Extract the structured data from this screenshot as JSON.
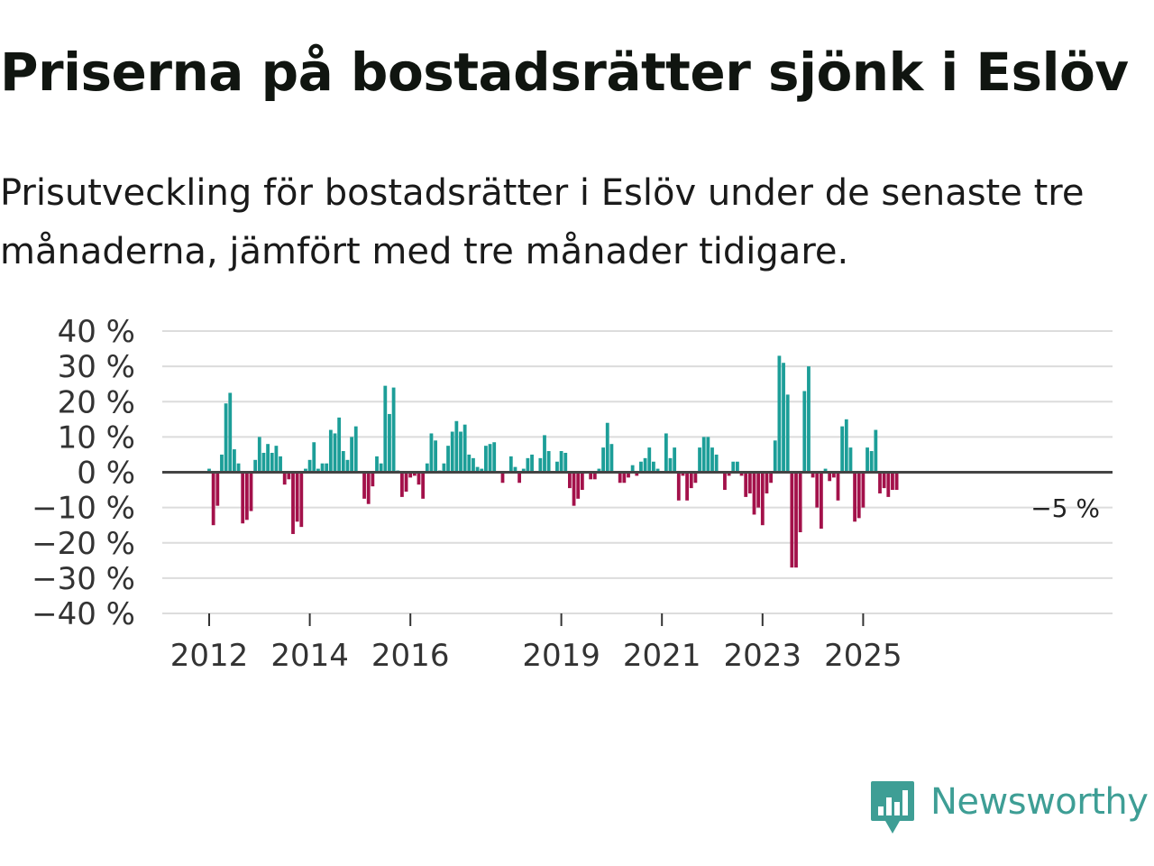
{
  "title": "Priserna på bostadsrätter sjönk i Eslöv",
  "subtitle": "Prisutveckling för bostadsrätter i Eslöv under de senaste tre månaderna, jämfört med tre månader tidigare.",
  "brand": {
    "name": "Newsworthy",
    "color": "#3e9e95"
  },
  "chart_data": {
    "type": "bar",
    "title": "Priserna på bostadsrätter sjönk i Eslöv",
    "ylabel": "",
    "xlabel": "",
    "ylim": [
      -40,
      40
    ],
    "yticks": [
      40,
      30,
      20,
      10,
      0,
      -10,
      -20,
      -30,
      -40
    ],
    "ytick_labels": [
      "40 %",
      "30 %",
      "20 %",
      "10 %",
      "0 %",
      "−10 %",
      "−20 %",
      "−30 %",
      "−40 %"
    ],
    "x_start": 2011.25,
    "bars_per_year": 12,
    "xticks": [
      2012,
      2014,
      2016,
      2019,
      2021,
      2023,
      2025
    ],
    "xtick_labels": [
      "2012",
      "2014",
      "2016",
      "2019",
      "2021",
      "2023",
      "2025"
    ],
    "positive_color": "#1c9e98",
    "negative_color": "#a3114a",
    "last_value_label": "−5 %",
    "values": [
      0,
      0,
      0,
      0,
      0,
      0,
      0,
      0,
      0,
      1,
      -15,
      -9.5,
      5,
      19.5,
      22.5,
      6.5,
      2.5,
      -14.5,
      -13.5,
      -11,
      3.5,
      10,
      5.5,
      8,
      5.5,
      7.5,
      4.5,
      -3.5,
      -2,
      -17.5,
      -14,
      -15.5,
      1,
      3.5,
      8.5,
      1,
      2.5,
      2.5,
      12,
      11,
      15.5,
      6,
      3.5,
      10,
      13,
      0,
      -7.5,
      -9,
      -4,
      4.5,
      2.5,
      24.5,
      16.5,
      24,
      0.5,
      -7,
      -5.5,
      -1.5,
      -1,
      -3.5,
      -7.5,
      2.5,
      11,
      9,
      0.5,
      2.5,
      7.5,
      11.5,
      14.5,
      11.5,
      13.5,
      5,
      4,
      1.5,
      1,
      7.5,
      8,
      8.5,
      0,
      -3,
      0,
      4.5,
      1.5,
      -3,
      1,
      4,
      5,
      0,
      4,
      10.5,
      6,
      0,
      3,
      6,
      5.5,
      -4.5,
      -9.5,
      -7.5,
      -5,
      0,
      -2,
      -2,
      1,
      7,
      14,
      8,
      0,
      -3,
      -3,
      -1.5,
      2,
      -1,
      3,
      4,
      7,
      3,
      1,
      0,
      11,
      4,
      7,
      -8,
      -1,
      -8,
      -4.5,
      -3,
      7,
      10,
      10,
      7,
      5,
      0,
      -5,
      -1,
      3,
      3,
      -1,
      -7,
      -6,
      -12,
      -10,
      -15,
      -6,
      -3,
      9,
      33,
      31,
      22,
      -27,
      -27,
      -17,
      23,
      30,
      -1.5,
      -10,
      -16,
      1,
      -2.5,
      -1.5,
      -8,
      13,
      15,
      7,
      -14,
      -13,
      -10,
      7,
      6,
      12,
      -6,
      -4.5,
      -7,
      -5,
      -5
    ]
  }
}
